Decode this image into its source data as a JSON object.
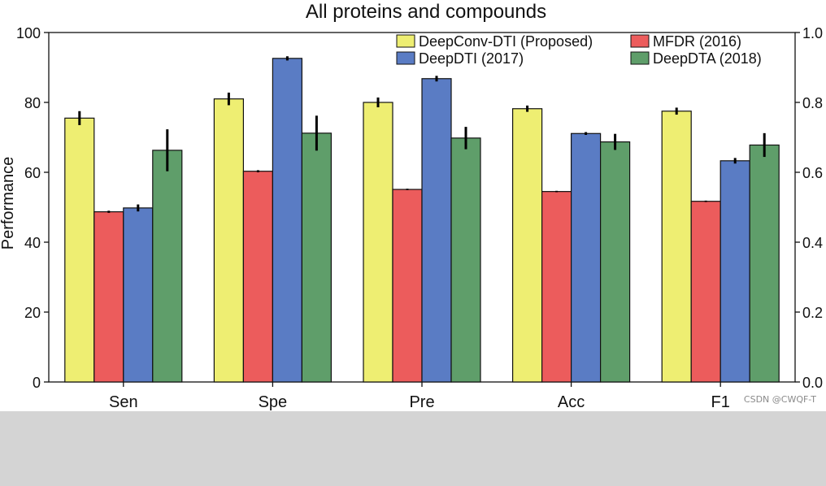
{
  "chart_data": {
    "type": "bar",
    "title": "All proteins and compounds",
    "ylabel": "Performance",
    "xlabel": "",
    "ylim": [
      0,
      100
    ],
    "yticks": [
      0,
      20,
      40,
      60,
      80,
      100
    ],
    "y2lim": [
      0,
      1.0
    ],
    "y2ticks": [
      "0.0",
      "0.2",
      "0.4",
      "0.6",
      "0.8",
      "1.0"
    ],
    "categories": [
      "Sen",
      "Spe",
      "Pre",
      "Acc",
      "F1"
    ],
    "legend_position": "top-right",
    "series": [
      {
        "name": "DeepConv-DTI (Proposed)",
        "color": "#eeee72",
        "values": [
          75.5,
          81,
          80,
          78.2,
          77.5
        ],
        "errors": [
          2,
          1.8,
          1.4,
          0.9,
          1.0
        ]
      },
      {
        "name": "MFDR (2016)",
        "color": "#ec5c5c",
        "values": [
          48.7,
          60.3,
          55.1,
          54.5,
          51.7
        ],
        "errors": [
          0.3,
          0.3,
          0.2,
          0.2,
          0.2
        ]
      },
      {
        "name": "DeepDTI (2017)",
        "color": "#5a7cc4",
        "values": [
          49.8,
          92.6,
          86.8,
          71.1,
          63.3
        ],
        "errors": [
          1.0,
          0.6,
          0.8,
          0.4,
          0.8
        ]
      },
      {
        "name": "DeepDTA (2018)",
        "color": "#5f9e6a",
        "values": [
          66.3,
          71.2,
          69.8,
          68.7,
          67.8
        ],
        "errors": [
          6.0,
          5.0,
          3.2,
          2.3,
          3.4
        ]
      }
    ]
  },
  "watermark": "CSDN @CWQF-T"
}
